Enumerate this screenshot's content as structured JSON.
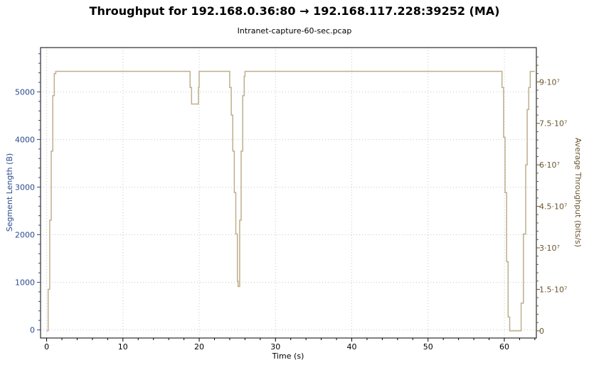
{
  "chart_data": {
    "type": "line",
    "title": "Throughput for 192.168.0.36:80 → 192.168.117.228:39252 (MA)",
    "subtitle": "Intranet-capture-60-sec.pcap",
    "xlabel": "Time (s)",
    "ylabel_left": "Segment Length (B)",
    "ylabel_right": "Average Throughput (bits/s)",
    "xlim": [
      -0.8,
      64.2
    ],
    "ylim_left": [
      -170,
      5930
    ],
    "ylim_right": [
      -2600000,
      102400000
    ],
    "x_ticks": [
      "0",
      "10",
      "20",
      "30",
      "40",
      "50",
      "60"
    ],
    "x_tick_values": [
      0,
      10,
      20,
      30,
      40,
      50,
      60
    ],
    "y_left_ticks": [
      "0",
      "1000",
      "2000",
      "3000",
      "4000",
      "5000"
    ],
    "y_left_tick_values": [
      0,
      1000,
      2000,
      3000,
      4000,
      5000
    ],
    "y_right_ticks": [
      "0",
      "1.5·10⁷",
      "3·10⁷",
      "4.5·10⁷",
      "6·10⁷",
      "7.5·10⁷",
      "9·10⁷"
    ],
    "y_right_tick_values": [
      0,
      15000000,
      30000000,
      45000000,
      60000000,
      75000000,
      90000000
    ],
    "grid": true,
    "series": [
      {
        "color": "#bfae8c",
        "axis": "right",
        "x": [
          0.0,
          0.2,
          0.4,
          0.6,
          0.8,
          1.0,
          1.2,
          18.6,
          18.8,
          19.0,
          19.8,
          19.9,
          20.0,
          23.9,
          24.0,
          24.2,
          24.4,
          24.6,
          24.8,
          25.0,
          25.1,
          25.3,
          25.5,
          25.7,
          25.9,
          26.0,
          59.5,
          59.7,
          59.9,
          60.1,
          60.3,
          60.5,
          60.7,
          60.9,
          62.0,
          62.2,
          62.5,
          62.8,
          63.0,
          63.2,
          63.4,
          63.6,
          64.0
        ],
        "y": [
          0,
          15000000,
          40000000,
          65000000,
          85000000,
          93000000,
          93800000,
          93800000,
          88000000,
          82000000,
          82000000,
          88000000,
          93800000,
          93800000,
          88000000,
          78000000,
          65000000,
          50000000,
          35000000,
          18000000,
          16000000,
          40000000,
          65000000,
          85000000,
          92000000,
          93800000,
          93800000,
          88000000,
          70000000,
          50000000,
          25000000,
          5000000,
          0,
          0,
          0,
          10000000,
          35000000,
          60000000,
          80000000,
          88000000,
          93800000,
          93800000,
          93800000
        ]
      }
    ]
  }
}
